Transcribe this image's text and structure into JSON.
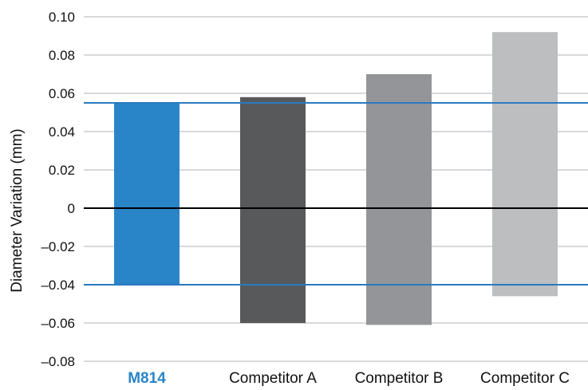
{
  "chart_data": {
    "type": "bar",
    "subtype": "floating-range",
    "ylabel": "Diameter Variation (mm)",
    "xlabel": "",
    "ylim": [
      -0.08,
      0.1
    ],
    "yticks": [
      0.1,
      0.08,
      0.06,
      0.04,
      0.02,
      0,
      -0.02,
      -0.04,
      -0.06,
      -0.08
    ],
    "ytick_labels": [
      "0.10",
      "0.08",
      "0.06",
      "0.04",
      "0.02",
      "0",
      "–0.02",
      "–0.04",
      "–0.06",
      "–0.08"
    ],
    "grid": true,
    "categories": [
      "M814",
      "Competitor A",
      "Competitor B",
      "Competitor C"
    ],
    "ranges": [
      {
        "category": "M814",
        "min": -0.04,
        "max": 0.055
      },
      {
        "category": "Competitor A",
        "min": -0.06,
        "max": 0.058
      },
      {
        "category": "Competitor B",
        "min": -0.061,
        "max": 0.07
      },
      {
        "category": "Competitor C",
        "min": -0.046,
        "max": 0.092
      }
    ],
    "bar_colors": [
      "#2a84c8",
      "#58595b",
      "#939598",
      "#bcbec0"
    ],
    "highlight_category_color": "#2a84c8",
    "reference_lines": [
      0.055,
      -0.04
    ],
    "reference_line_color": "#2a7abf",
    "zero_line_color": "#000000",
    "grid_color": "#b3b3b3"
  }
}
